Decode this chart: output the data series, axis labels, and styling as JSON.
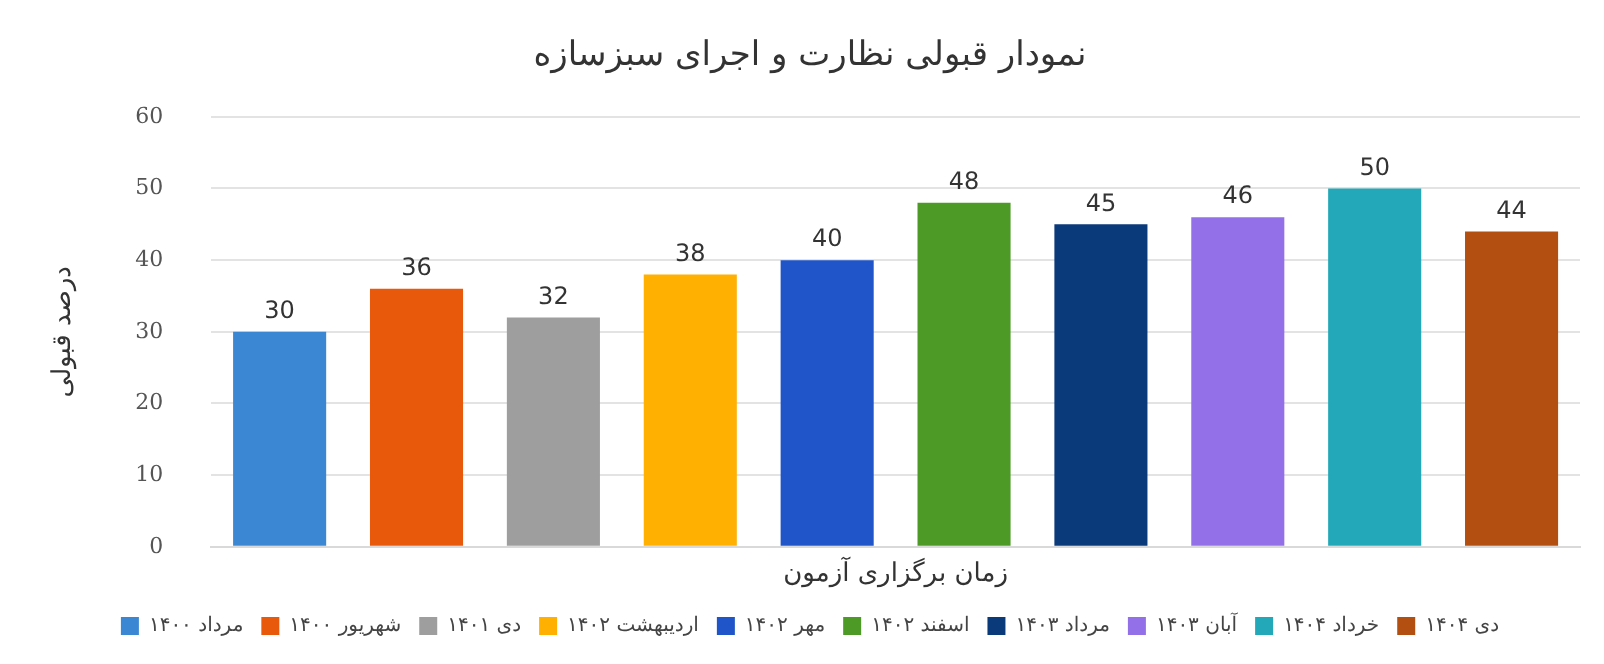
{
  "chart_data": {
    "type": "bar",
    "title": "نمودار قبولی نظارت و اجرای سبزسازه",
    "xlabel": "زمان برگزاری آزمون",
    "ylabel": "درصد قبولی",
    "categories": [
      null
    ],
    "series": [
      {
        "name": "مرداد ۱۴۰۰",
        "color": "#3b87d4",
        "values": [
          30
        ]
      },
      {
        "name": "شهریور ۱۴۰۰",
        "color": "#e8590c",
        "values": [
          36
        ]
      },
      {
        "name": "دی ۱۴۰۱",
        "color": "#9e9e9e",
        "values": [
          32
        ]
      },
      {
        "name": "اردیبهشت ۱۴۰۲",
        "color": "#ffb000",
        "values": [
          38
        ]
      },
      {
        "name": "مهر ۱۴۰۲",
        "color": "#1f55c8",
        "values": [
          40
        ]
      },
      {
        "name": "اسفند ۱۴۰۲",
        "color": "#4d9a27",
        "values": [
          48
        ]
      },
      {
        "name": "مرداد ۱۴۰۳",
        "color": "#0b3a7a",
        "values": [
          45
        ]
      },
      {
        "name": "آبان ۱۴۰۳",
        "color": "#9370e8",
        "values": [
          46
        ]
      },
      {
        "name": "خرداد ۱۴۰۴",
        "color": "#22a8b8",
        "values": [
          50
        ]
      },
      {
        "name": "دی ۱۴۰۴",
        "color": "#b34f10",
        "values": [
          44
        ]
      }
    ],
    "ylim": [
      0,
      60
    ],
    "yticks": [
      0,
      10,
      20,
      30,
      40,
      50,
      60
    ],
    "grid": "y",
    "legend": "bottom",
    "tick_labels": "y",
    "data_labels": true
  }
}
